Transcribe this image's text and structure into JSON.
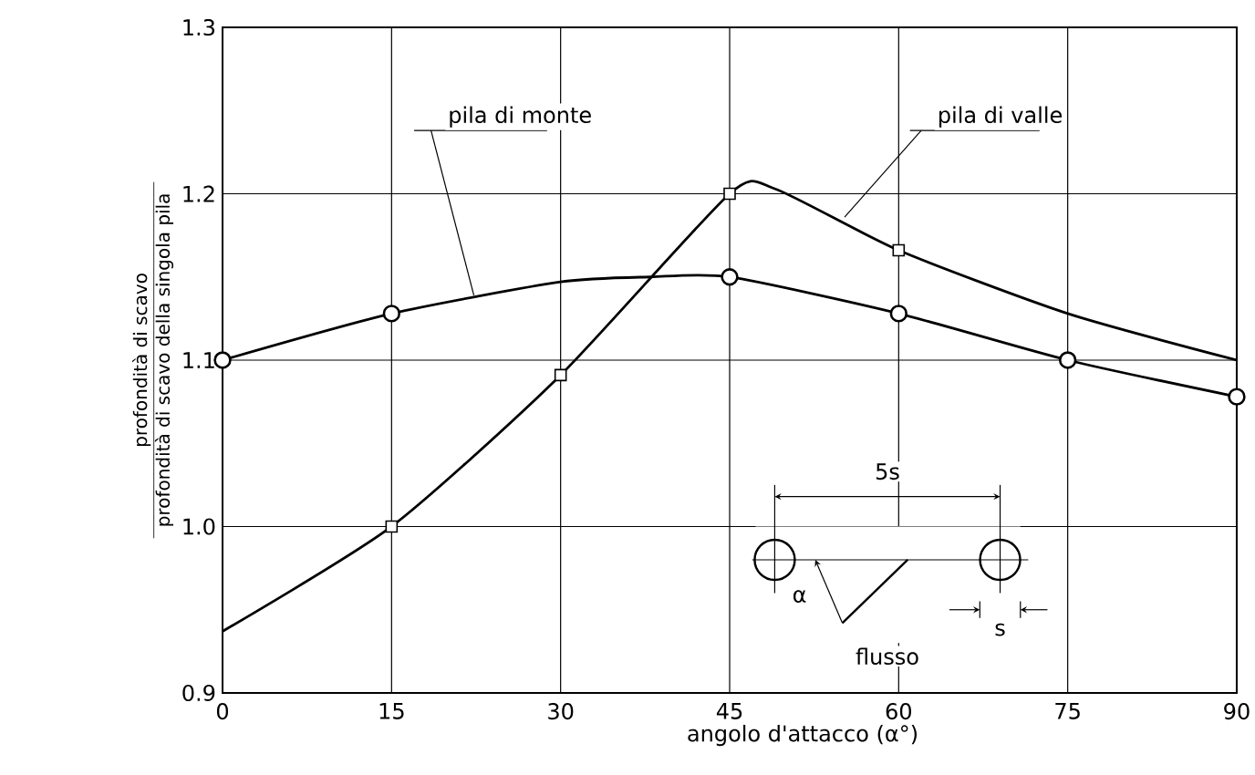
{
  "chart_data": {
    "type": "line",
    "xlabel": "angolo d'attacco (α°)",
    "ylabel": "profondità di scavo",
    "annotations": [
      "profondità di scavo della singola pila",
      "5s",
      "α",
      "flusso",
      "s"
    ],
    "xlim": [
      0,
      90
    ],
    "ylim": [
      0.9,
      1.3
    ],
    "xticks": [
      0,
      15,
      30,
      45,
      60,
      75,
      90
    ],
    "yticks": [
      0.9,
      {
        "value": 1.0,
        "label": "1.0"
      },
      1.1,
      1.2,
      1.3
    ],
    "grid": true,
    "series": [
      {
        "name": "pila di monte",
        "marker": "none",
        "line_style": "solid",
        "color": "#000000",
        "x": [
          0,
          15,
          30,
          38,
          45,
          60,
          75,
          90
        ],
        "values": [
          1.1,
          1.128,
          1.147,
          1.15,
          1.15,
          1.128,
          1.1,
          1.078
        ]
      },
      {
        "type": "scatter",
        "marker": "circle",
        "color": "#000000",
        "x": [
          0,
          15,
          45,
          60,
          75,
          90
        ],
        "values": [
          1.1,
          1.128,
          1.15,
          1.128,
          1.1,
          1.078
        ]
      },
      {
        "name": "pila di valle",
        "marker": "none",
        "line_style": "solid",
        "color": "#000000",
        "x": [
          0,
          15,
          30,
          45,
          49,
          60,
          75,
          90
        ],
        "values": [
          0.937,
          1.0,
          1.091,
          1.2,
          1.203,
          1.166,
          1.128,
          1.1
        ]
      },
      {
        "type": "scatter",
        "marker": "square",
        "color": "#000000",
        "x": [
          15,
          30,
          45,
          60
        ],
        "values": [
          1.0,
          1.091,
          1.2,
          1.166
        ]
      }
    ]
  }
}
